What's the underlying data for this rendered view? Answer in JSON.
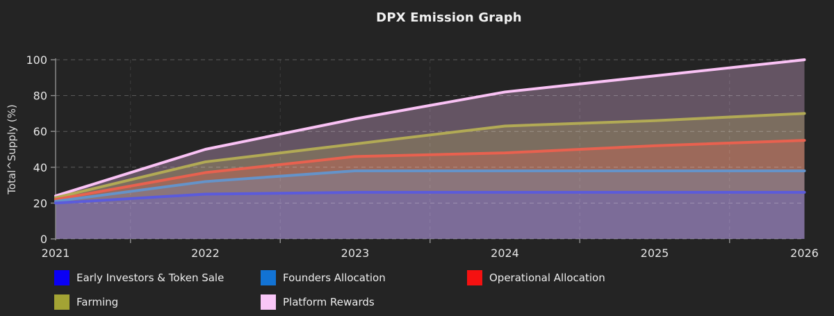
{
  "title": "DPX Emission Graph",
  "chart_data": {
    "type": "area",
    "title": "DPX Emission Graph",
    "x": [
      2021,
      2022,
      2023,
      2024,
      2025,
      2026
    ],
    "x_tick_labels": [
      "2021",
      "2022",
      "2023",
      "2024",
      "2025",
      "2026"
    ],
    "xlabel": "",
    "ylabel": "Total^Supply (%)",
    "ylim": [
      0,
      100
    ],
    "yticks": [
      0,
      20,
      40,
      60,
      80,
      100
    ],
    "grid": "dashed horizontal lines at each y tick; faint dashed vertical lines and axis ticks at half-year minor positions",
    "legend_position": "bottom-left, two rows",
    "background_color": "#242424",
    "fill_to_zero": true,
    "fill_opacity": 0.3,
    "series": [
      {
        "name": "Early Investors & Token Sale",
        "swatch_color": "#0a00f5",
        "line_color": "#5b5bdb",
        "values": [
          20,
          25,
          26,
          26,
          26,
          26
        ]
      },
      {
        "name": "Founders Allocation",
        "swatch_color": "#1273d4",
        "line_color": "#6593c9",
        "values": [
          21,
          32,
          38,
          38,
          38,
          38
        ]
      },
      {
        "name": "Operational Allocation",
        "swatch_color": "#f51111",
        "line_color": "#e8614f",
        "values": [
          22,
          37,
          46,
          48,
          52,
          55
        ]
      },
      {
        "name": "Farming",
        "swatch_color": "#a3a334",
        "line_color": "#b2aa55",
        "values": [
          23,
          43,
          53,
          63,
          66,
          70
        ]
      },
      {
        "name": "Platform Rewards",
        "swatch_color": "#f9c6f7",
        "line_color": "#fac2f5",
        "values": [
          24,
          50,
          67,
          82,
          91,
          100
        ]
      }
    ]
  }
}
